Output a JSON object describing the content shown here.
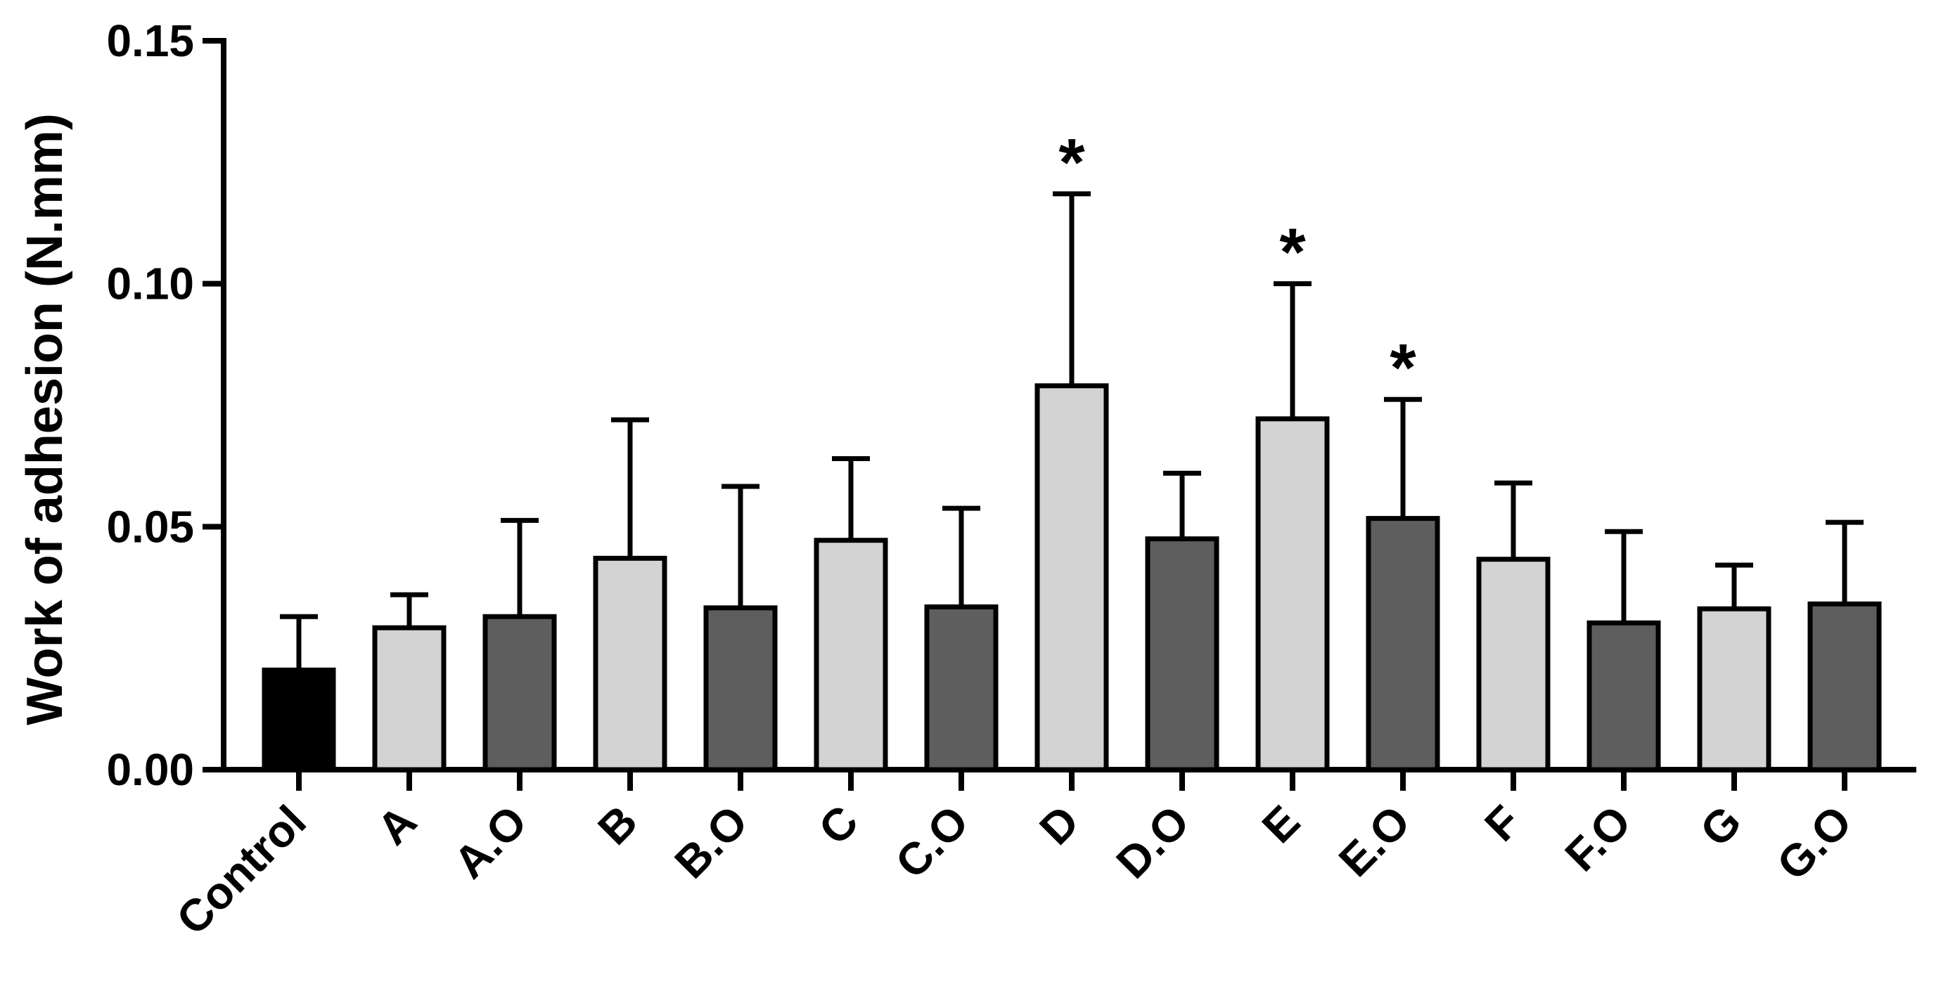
{
  "chart_data": {
    "type": "bar",
    "ylabel": "Work of adhesion (N.mm)",
    "xlabel": "",
    "ylim": [
      0,
      0.15
    ],
    "yticks": [
      "0.00",
      "0.05",
      "0.10",
      "0.15"
    ],
    "yticks_values": [
      0,
      0.05,
      0.1,
      0.15
    ],
    "grid": false,
    "categories": [
      "Control",
      "A",
      "A.O",
      "B",
      "B.O",
      "C",
      "C.O",
      "D",
      "D.O",
      "E",
      "E.O",
      "F",
      "F.O",
      "G",
      "G.O"
    ],
    "values": [
      0.0205,
      0.0292,
      0.0315,
      0.0435,
      0.0333,
      0.0472,
      0.0335,
      0.079,
      0.0475,
      0.0722,
      0.0517,
      0.0433,
      0.0302,
      0.0331,
      0.0341
    ],
    "errors": [
      0.011,
      0.0068,
      0.0198,
      0.0285,
      0.025,
      0.0168,
      0.0203,
      0.0395,
      0.0135,
      0.0278,
      0.0245,
      0.0157,
      0.0188,
      0.009,
      0.0168
    ],
    "significance": [
      "",
      "",
      "",
      "",
      "",
      "",
      "",
      "*",
      "",
      "*",
      "*",
      "",
      "",
      "",
      ""
    ],
    "colors": {
      "control": "#000000",
      "plain": "#d3d3d3",
      "oil": "#5e5e5e",
      "outline": "#000000"
    },
    "bar_fill_groups": [
      "control",
      "plain",
      "oil",
      "plain",
      "oil",
      "plain",
      "oil",
      "plain",
      "oil",
      "plain",
      "oil",
      "plain",
      "oil",
      "plain",
      "oil"
    ]
  }
}
